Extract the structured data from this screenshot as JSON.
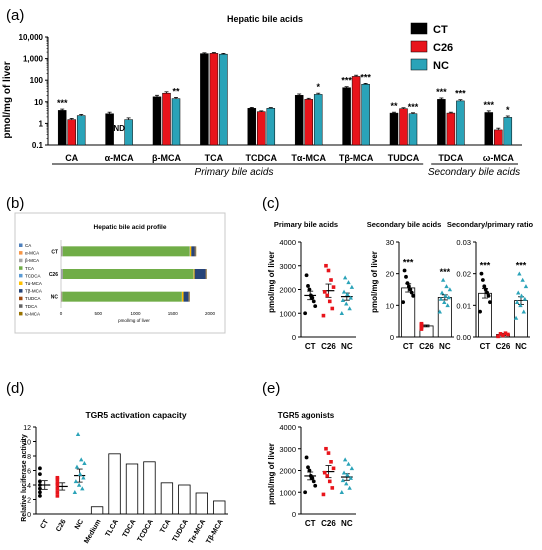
{
  "panel_labels": [
    "(a)",
    "(b)",
    "(c)",
    "(d)",
    "(e)"
  ],
  "colors": {
    "CT": "#000000",
    "C26": "#e8141b",
    "NC": "#2aa3b8",
    "axis": "#000000"
  },
  "chart_data": [
    {
      "id": "a",
      "type": "bar",
      "scale": "log",
      "title": "Hepatic bile acids",
      "ylabel": "pmol/mg of liver",
      "ylim": [
        0.1,
        10000
      ],
      "yticks": [
        "0.1",
        "1",
        "10",
        "100",
        "1,000",
        "10,000"
      ],
      "legend": {
        "position": "top-right",
        "entries": [
          "CT",
          "C26",
          "NC"
        ]
      },
      "categories": [
        "CA",
        "α-MCA",
        "β-MCA",
        "TCA",
        "TCDCA",
        "Tα-MCA",
        "Tβ-MCA",
        "TUDCA",
        "TDCA",
        "ω-MCA"
      ],
      "series": [
        {
          "name": "CT",
          "values": [
            4.0,
            2.8,
            17,
            1700,
            5,
            20,
            45,
            3.0,
            13,
            3.2
          ],
          "errors": [
            0.6,
            0.5,
            3,
            150,
            0.5,
            3,
            5,
            0.3,
            2,
            0.6
          ]
        },
        {
          "name": "C26",
          "values": [
            1.5,
            null,
            25,
            1750,
            3.5,
            13,
            150,
            4.8,
            3.0,
            0.5
          ],
          "errors": [
            0.2,
            null,
            4,
            160,
            0.3,
            1.5,
            20,
            0.5,
            0.3,
            0.1
          ]
        },
        {
          "name": "NC",
          "values": [
            2.3,
            1.5,
            14,
            1600,
            5,
            22,
            65,
            2.8,
            11,
            1.9
          ],
          "errors": [
            0.3,
            0.3,
            2,
            140,
            0.4,
            3,
            6,
            0.3,
            1.5,
            0.3
          ]
        }
      ],
      "annotations": [
        {
          "category": "CA",
          "series": "CT",
          "text": "***"
        },
        {
          "category": "α-MCA",
          "series": "C26",
          "text": "ND"
        },
        {
          "category": "β-MCA",
          "series": "NC",
          "text": "**"
        },
        {
          "category": "Tα-MCA",
          "series": "NC",
          "text": "*"
        },
        {
          "category": "Tβ-MCA",
          "series": "CT",
          "text": "***"
        },
        {
          "category": "Tβ-MCA",
          "series": "NC",
          "text": "***"
        },
        {
          "category": "TUDCA",
          "series": "CT",
          "text": "**"
        },
        {
          "category": "TUDCA",
          "series": "NC",
          "text": "***"
        },
        {
          "category": "TDCA",
          "series": "CT",
          "text": "***"
        },
        {
          "category": "TDCA",
          "series": "NC",
          "text": "***"
        },
        {
          "category": "ω-MCA",
          "series": "CT",
          "text": "***"
        },
        {
          "category": "ω-MCA",
          "series": "NC",
          "text": "*"
        }
      ],
      "groups": [
        {
          "label": "Primary bile acids",
          "categories": [
            "CA",
            "α-MCA",
            "β-MCA",
            "TCA",
            "TCDCA",
            "Tα-MCA",
            "Tβ-MCA",
            "TUDCA"
          ]
        },
        {
          "label": "Secondary bile acids",
          "categories": [
            "TDCA",
            "ω-MCA"
          ]
        }
      ]
    },
    {
      "id": "b",
      "type": "bar",
      "orientation": "horizontal",
      "stacked": true,
      "title": "Hepatic bile acid profile",
      "xlabel": "pmol/mg of liver",
      "xlim": [
        0,
        2000
      ],
      "xticks": [
        "0",
        "500",
        "1000",
        "1500",
        "2000"
      ],
      "categories": [
        "CT",
        "C26",
        "NC"
      ],
      "legend": {
        "position": "left",
        "entries": [
          "CA",
          "α-MCA",
          "β-MCA",
          "TCA",
          "TCDCA",
          "Tα-MCA",
          "Tβ-MCA",
          "TUDCA",
          "TDCA",
          "ω-MCA"
        ]
      },
      "segment_colors": [
        "#4f81bd",
        "#f79646",
        "#a5a5a5",
        "#70ad47",
        "#5b9bd5",
        "#ffc000",
        "#264478",
        "#9e480e",
        "#636363",
        "#997300"
      ],
      "series": [
        {
          "name": "CA",
          "values": [
            4,
            1.5,
            2.3
          ]
        },
        {
          "name": "α-MCA",
          "values": [
            2.8,
            0,
            1.5
          ]
        },
        {
          "name": "β-MCA",
          "values": [
            17,
            25,
            14
          ]
        },
        {
          "name": "TCA",
          "values": [
            1700,
            1750,
            1600
          ]
        },
        {
          "name": "TCDCA",
          "values": [
            5,
            3.5,
            5
          ]
        },
        {
          "name": "Tα-MCA",
          "values": [
            20,
            13,
            22
          ]
        },
        {
          "name": "Tβ-MCA",
          "values": [
            45,
            150,
            65
          ]
        },
        {
          "name": "TUDCA",
          "values": [
            3,
            4.8,
            2.8
          ]
        },
        {
          "name": "TDCA",
          "values": [
            13,
            3,
            11
          ]
        },
        {
          "name": "ω-MCA",
          "values": [
            3.2,
            0.5,
            1.9
          ]
        }
      ]
    },
    {
      "id": "c1",
      "type": "scatter",
      "title": "Primary bile acids",
      "ylabel": "pmol/mg of liver",
      "ylim": [
        0,
        4000
      ],
      "yticks": [
        "0",
        "1000",
        "2000",
        "3000",
        "4000"
      ],
      "categories": [
        "CT",
        "C26",
        "NC"
      ],
      "means": [
        1750,
        1950,
        1700
      ],
      "sems": [
        180,
        280,
        150
      ],
      "points": [
        [
          1000,
          1300,
          1500,
          1650,
          1750,
          2000,
          2150,
          2600
        ],
        [
          900,
          1200,
          1500,
          1750,
          1900,
          2100,
          2400,
          2800,
          3000
        ],
        [
          1000,
          1200,
          1400,
          1550,
          1650,
          1800,
          1900,
          2100,
          2300,
          2500
        ]
      ],
      "annotations": []
    },
    {
      "id": "c2",
      "type": "scatter",
      "title": "Secondary bile acids",
      "ylabel": "pmol/mg of liver",
      "ylim": [
        0,
        30
      ],
      "yticks": [
        "0",
        "10",
        "20",
        "30"
      ],
      "categories": [
        "CT",
        "C26",
        "NC"
      ],
      "means": [
        15.5,
        3.5,
        12.5
      ],
      "sems": [
        1.3,
        0.3,
        0.8
      ],
      "points": [
        [
          11,
          13,
          14,
          15,
          16,
          17,
          19,
          21
        ],
        [
          2.5,
          3,
          3.2,
          3.5,
          3.8,
          4,
          4.2
        ],
        [
          8,
          10,
          11,
          12,
          12.5,
          13,
          14,
          15,
          16,
          18
        ]
      ],
      "annotations": [
        {
          "category": "CT",
          "text": "***"
        },
        {
          "category": "NC",
          "text": "***"
        }
      ]
    },
    {
      "id": "c3",
      "type": "scatter",
      "title": "Secondary/primary ratio",
      "ylim": [
        0,
        0.03
      ],
      "yticks": [
        "0.00",
        "0.01",
        "0.02",
        "0.03"
      ],
      "categories": [
        "CT",
        "C26",
        "NC"
      ],
      "means": [
        0.0138,
        0.0008,
        0.0115
      ],
      "sems": [
        0.0015,
        0.0003,
        0.0012
      ],
      "points": [
        [
          0.008,
          0.011,
          0.013,
          0.014,
          0.015,
          0.016,
          0.018,
          0.02
        ],
        [
          0.0002,
          0.0005,
          0.0008,
          0.001,
          0.0012
        ],
        [
          0.006,
          0.008,
          0.01,
          0.011,
          0.012,
          0.013,
          0.014,
          0.016,
          0.018,
          0.02
        ]
      ],
      "annotations": [
        {
          "category": "CT",
          "text": "***"
        },
        {
          "category": "NC",
          "text": "***"
        }
      ]
    },
    {
      "id": "d",
      "type": "scatter",
      "title": "TGR5 activation capacity",
      "ylabel": "Relative luciferase activity",
      "ylim": [
        0,
        12
      ],
      "yticks": [
        "0",
        "2",
        "4",
        "6",
        "8",
        "10",
        "12"
      ],
      "categories": [
        "CT",
        "C26",
        "NC",
        "Medium",
        "TLCA",
        "TDCA",
        "TCDCA",
        "TCA",
        "TUDCA",
        "Tα-MCA",
        "Tβ-MCA"
      ],
      "means": [
        4.0,
        3.8,
        5.3
      ],
      "sems": [
        0.6,
        0.5,
        0.9
      ],
      "points": [
        [
          2.5,
          3,
          3.5,
          4,
          4.5,
          5.5,
          6.3
        ],
        [
          2.5,
          3,
          3.5,
          4,
          4.3,
          4.8,
          5
        ],
        [
          3,
          3.5,
          4,
          4.5,
          5,
          5.5,
          6.5,
          7,
          7.5,
          11
        ]
      ],
      "bars": [
        1.0,
        8.3,
        6.9,
        7.2,
        4.3,
        4.0,
        2.9,
        1.8
      ]
    },
    {
      "id": "e",
      "type": "scatter",
      "title": "TGR5 agonists",
      "ylabel": "pmol/mg of liver",
      "ylim": [
        0,
        4000
      ],
      "yticks": [
        "0",
        "1000",
        "2000",
        "3000",
        "4000"
      ],
      "categories": [
        "CT",
        "C26",
        "NC"
      ],
      "means": [
        1750,
        1950,
        1700
      ],
      "sems": [
        180,
        280,
        150
      ],
      "points": [
        [
          1000,
          1300,
          1500,
          1650,
          1750,
          2000,
          2150,
          2600
        ],
        [
          900,
          1200,
          1500,
          1750,
          1900,
          2100,
          2400,
          2800,
          3000
        ],
        [
          1000,
          1200,
          1400,
          1550,
          1650,
          1800,
          1900,
          2100,
          2300,
          2500
        ]
      ]
    }
  ]
}
